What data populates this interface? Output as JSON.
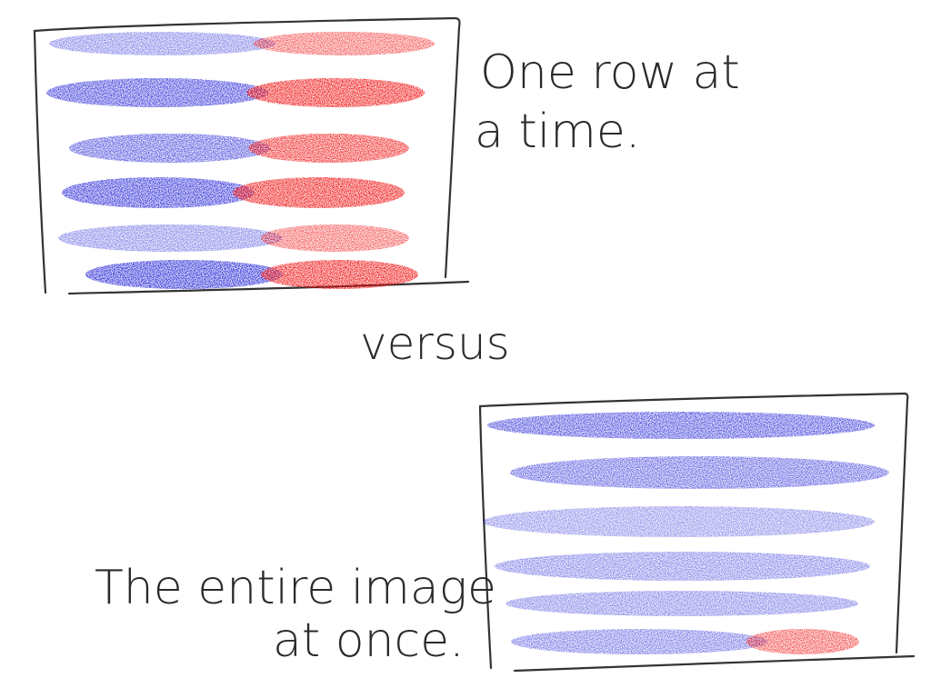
{
  "top_panel": {
    "caption_line1": "One row at",
    "caption_line2": "a time.",
    "rows": [
      {
        "blue_fraction": 0.55,
        "intensity": 0.55
      },
      {
        "blue_fraction": 0.55,
        "intensity": 0.85
      },
      {
        "blue_fraction": 0.55,
        "intensity": 0.75
      },
      {
        "blue_fraction": 0.52,
        "intensity": 0.9
      },
      {
        "blue_fraction": 0.6,
        "intensity": 0.55
      },
      {
        "blue_fraction": 0.55,
        "intensity": 0.95
      }
    ]
  },
  "middle": {
    "label": "versus"
  },
  "bottom_panel": {
    "caption_line1": "The entire image",
    "caption_line2": "at once.",
    "rows": [
      {
        "blue_fraction": 1.0,
        "intensity": 0.8
      },
      {
        "blue_fraction": 1.0,
        "intensity": 0.7
      },
      {
        "blue_fraction": 1.0,
        "intensity": 0.5
      },
      {
        "blue_fraction": 1.0,
        "intensity": 0.55
      },
      {
        "blue_fraction": 1.0,
        "intensity": 0.55
      },
      {
        "blue_fraction": 0.7,
        "intensity": 0.6
      }
    ]
  },
  "colors": {
    "blue": "#1a1ad6",
    "red": "#f01010",
    "ink": "#2a2a2a"
  }
}
